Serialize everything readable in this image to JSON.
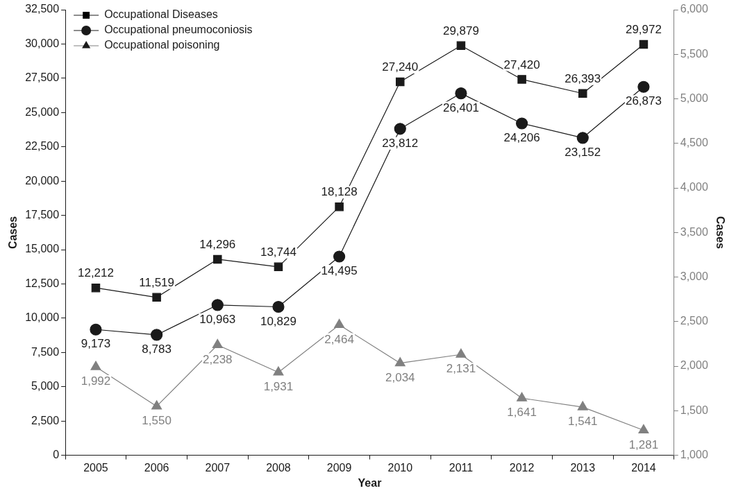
{
  "chart_data": {
    "type": "line",
    "xlabel": "Year",
    "ylabel": "Cases",
    "y2label": "Cases",
    "categories": [
      "2005",
      "2006",
      "2007",
      "2008",
      "2009",
      "2010",
      "2011",
      "2012",
      "2013",
      "2014"
    ],
    "series": [
      {
        "name": "Occupational Diseases",
        "color": "#1a1a1a",
        "marker": "square",
        "values": [
          12212,
          11519,
          14296,
          13744,
          18128,
          27240,
          29879,
          27420,
          26393,
          29972
        ],
        "value_labels": [
          "12,212",
          "11,519",
          "14,296",
          "13,744",
          "18,128",
          "27,240",
          "29,879",
          "27,420",
          "26,393",
          "29,972"
        ]
      },
      {
        "name": "Occupational pneumoconiosis",
        "color": "#1a1a1a",
        "marker": "circle",
        "values": [
          9173,
          8783,
          10963,
          10829,
          14495,
          23812,
          26401,
          24206,
          23152,
          26873
        ],
        "value_labels": [
          "9,173",
          "8,783",
          "10,963",
          "10,829",
          "14,495",
          "23,812",
          "26,401",
          "24,206",
          "23,152",
          "26,873"
        ]
      },
      {
        "name": "Occupational poisoning",
        "color": "#808080",
        "marker": "triangle",
        "axis": "y2",
        "values": [
          1992,
          1550,
          2238,
          1931,
          2464,
          2034,
          2131,
          1641,
          1541,
          1281
        ],
        "value_labels": [
          "1,992",
          "1,550",
          "2,238",
          "1,931",
          "2,464",
          "2,034",
          "2,131",
          "1,641",
          "1,541",
          "1,281"
        ]
      }
    ],
    "ylim": [
      0,
      32500
    ],
    "yticks": [
      0,
      {
        "value": 2500,
        "label": "2,500"
      },
      {
        "value": 5000,
        "label": "5,000"
      },
      {
        "value": 7500,
        "label": "7,500"
      },
      {
        "value": 10000,
        "label": "10,000"
      },
      {
        "value": 12500,
        "label": "12,500"
      },
      {
        "value": 15000,
        "label": "15,000"
      },
      {
        "value": 17500,
        "label": "17,500"
      },
      {
        "value": 20000,
        "label": "20,000"
      },
      {
        "value": 22500,
        "label": "22,500"
      },
      {
        "value": 25000,
        "label": "25,000"
      },
      {
        "value": 27500,
        "label": "27,500"
      },
      {
        "value": 30000,
        "label": "30,000"
      },
      {
        "value": 32500,
        "label": "32,500"
      }
    ],
    "y2lim": [
      1000,
      6000
    ],
    "y2ticks": [
      {
        "value": 1000,
        "label": "1,000"
      },
      {
        "value": 1500,
        "label": "1,500"
      },
      {
        "value": 2000,
        "label": "2,000"
      },
      {
        "value": 2500,
        "label": "2,500"
      },
      {
        "value": 3000,
        "label": "3,000"
      },
      {
        "value": 3500,
        "label": "3,500"
      },
      {
        "value": 4000,
        "label": "4,000"
      },
      {
        "value": 4500,
        "label": "4,500"
      },
      {
        "value": 5000,
        "label": "5,000"
      },
      {
        "value": 5500,
        "label": "5,500"
      },
      {
        "value": 6000,
        "label": "6,000"
      }
    ],
    "grid": false,
    "legend": "top left"
  }
}
